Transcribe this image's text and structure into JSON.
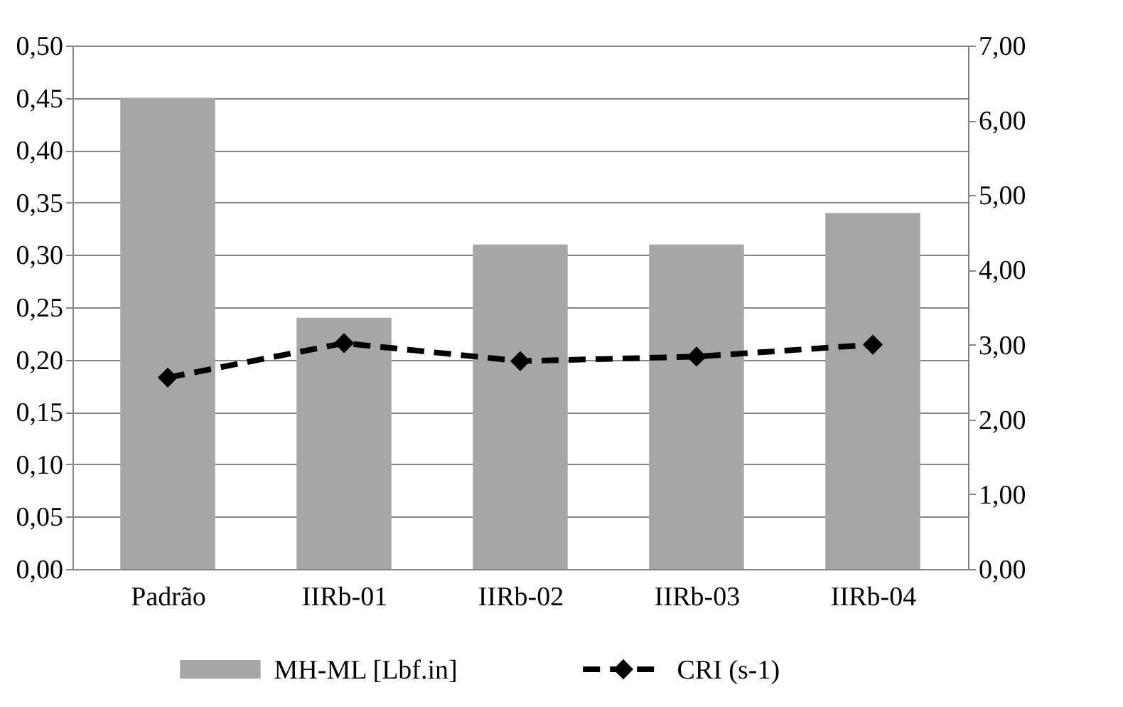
{
  "chart_data": {
    "type": "bar",
    "categories": [
      "Padrão",
      "IIRb-01",
      "IIRb-02",
      "IIRb-03",
      "IIRb-04"
    ],
    "series": [
      {
        "name": "MH-ML [Lbf.in]",
        "color": "#a6a6a6",
        "values": [
          0.45,
          0.24,
          0.31,
          0.31,
          0.34
        ]
      },
      {
        "name": "CRI (s-1)",
        "type": "line",
        "axis": "y2",
        "color": "#000000",
        "marker": "diamond",
        "line_style": "dashed",
        "values": [
          2.56,
          3.02,
          2.78,
          2.84,
          3.0
        ]
      }
    ],
    "ylim": [
      0,
      0.5
    ],
    "yticks": [
      {
        "value": 0,
        "label": "0,00"
      },
      {
        "value": 0.05,
        "label": "0,05"
      },
      {
        "value": 0.1,
        "label": "0,10"
      },
      {
        "value": 0.15,
        "label": "0,15"
      },
      {
        "value": 0.2,
        "label": "0,20"
      },
      {
        "value": 0.25,
        "label": "0,25"
      },
      {
        "value": 0.3,
        "label": "0,30"
      },
      {
        "value": 0.35,
        "label": "0,35"
      },
      {
        "value": 0.4,
        "label": "0,40"
      },
      {
        "value": 0.45,
        "label": "0,45"
      },
      {
        "value": 0.5,
        "label": "0,50"
      }
    ],
    "y2lim": [
      0,
      7
    ],
    "y2ticks": [
      {
        "value": 0,
        "label": "0,00"
      },
      {
        "value": 1,
        "label": "1,00"
      },
      {
        "value": 2,
        "label": "2,00"
      },
      {
        "value": 3,
        "label": "3,00"
      },
      {
        "value": 4,
        "label": "4,00"
      },
      {
        "value": 5,
        "label": "5,00"
      },
      {
        "value": 6,
        "label": "6,00"
      },
      {
        "value": 7,
        "label": "7,00"
      }
    ],
    "grid": "y",
    "legend": "bottom"
  }
}
